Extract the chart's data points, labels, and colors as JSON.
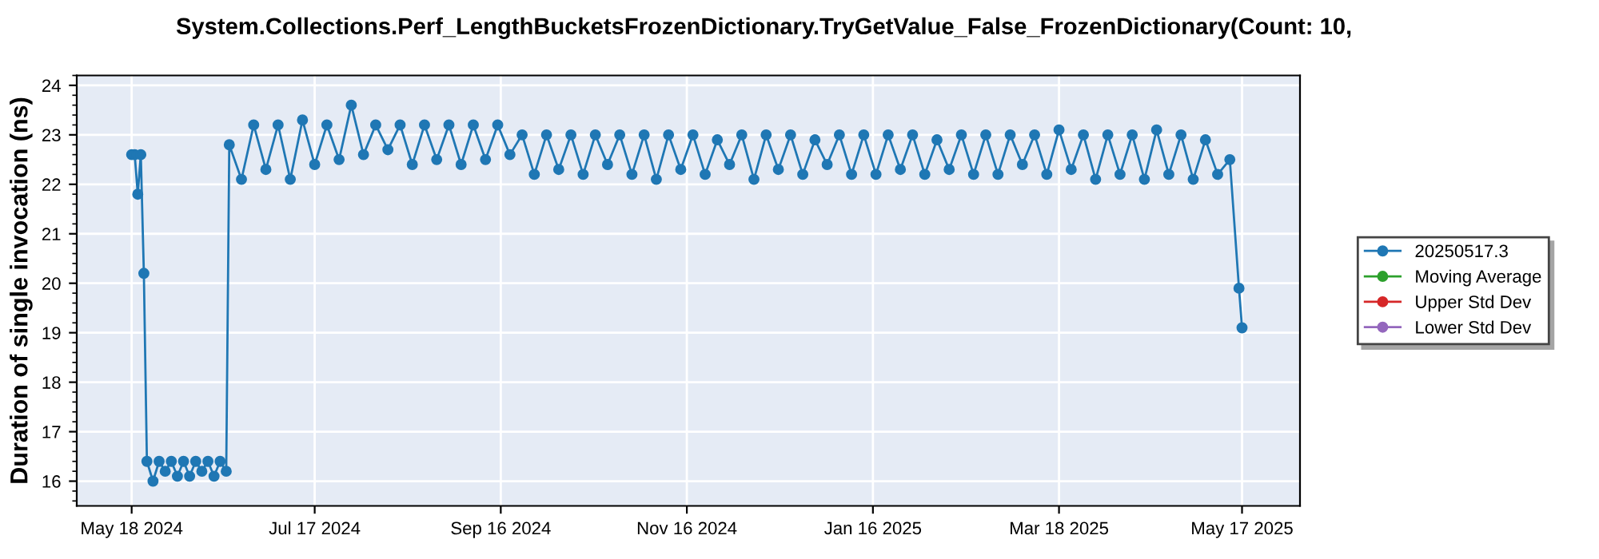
{
  "chart_data": {
    "type": "line",
    "title": "System.Collections.Perf_LengthBucketsFrozenDictionary.TryGetValue_False_FrozenDictionary(Count: 10,",
    "ylabel": "Duration of single invocation (ns)",
    "xlim": [
      "2024-04-30",
      "2025-06-05"
    ],
    "ylim": [
      15.5,
      24.2
    ],
    "xticks": [
      {
        "value": "2024-05-18",
        "label": "May 18 2024"
      },
      {
        "value": "2024-07-17",
        "label": "Jul 17 2024"
      },
      {
        "value": "2024-09-16",
        "label": "Sep 16 2024"
      },
      {
        "value": "2024-11-16",
        "label": "Nov 16 2024"
      },
      {
        "value": "2025-01-16",
        "label": "Jan 16 2025"
      },
      {
        "value": "2025-03-18",
        "label": "Mar 18 2025"
      },
      {
        "value": "2025-05-17",
        "label": "May 17 2025"
      }
    ],
    "yticks": [
      16,
      17,
      18,
      19,
      20,
      21,
      22,
      23,
      24
    ],
    "grid": true,
    "legend": "right",
    "marker": "circle",
    "line_style": "solid",
    "series": [
      {
        "name": "20250517.3",
        "color": "#1f77b4",
        "x": [
          "2024-05-18",
          "2024-05-19",
          "2024-05-20",
          "2024-05-21",
          "2024-05-22",
          "2024-05-23",
          "2024-05-25",
          "2024-05-27",
          "2024-05-29",
          "2024-05-31",
          "2024-06-02",
          "2024-06-04",
          "2024-06-06",
          "2024-06-08",
          "2024-06-10",
          "2024-06-12",
          "2024-06-14",
          "2024-06-16",
          "2024-06-18",
          "2024-06-19",
          "2024-06-23",
          "2024-06-27",
          "2024-07-01",
          "2024-07-05",
          "2024-07-09",
          "2024-07-13",
          "2024-07-17",
          "2024-07-21",
          "2024-07-25",
          "2024-07-29",
          "2024-08-02",
          "2024-08-06",
          "2024-08-10",
          "2024-08-14",
          "2024-08-18",
          "2024-08-22",
          "2024-08-26",
          "2024-08-30",
          "2024-09-03",
          "2024-09-07",
          "2024-09-11",
          "2024-09-15",
          "2024-09-19",
          "2024-09-23",
          "2024-09-27",
          "2024-10-01",
          "2024-10-05",
          "2024-10-09",
          "2024-10-13",
          "2024-10-17",
          "2024-10-21",
          "2024-10-25",
          "2024-10-29",
          "2024-11-02",
          "2024-11-06",
          "2024-11-10",
          "2024-11-14",
          "2024-11-18",
          "2024-11-22",
          "2024-11-26",
          "2024-11-30",
          "2024-12-04",
          "2024-12-08",
          "2024-12-12",
          "2024-12-16",
          "2024-12-20",
          "2024-12-24",
          "2024-12-28",
          "2025-01-01",
          "2025-01-05",
          "2025-01-09",
          "2025-01-13",
          "2025-01-17",
          "2025-01-21",
          "2025-01-25",
          "2025-01-29",
          "2025-02-02",
          "2025-02-06",
          "2025-02-10",
          "2025-02-14",
          "2025-02-18",
          "2025-02-22",
          "2025-02-26",
          "2025-03-02",
          "2025-03-06",
          "2025-03-10",
          "2025-03-14",
          "2025-03-18",
          "2025-03-22",
          "2025-03-26",
          "2025-03-30",
          "2025-04-03",
          "2025-04-07",
          "2025-04-11",
          "2025-04-15",
          "2025-04-19",
          "2025-04-23",
          "2025-04-27",
          "2025-05-01",
          "2025-05-05",
          "2025-05-09",
          "2025-05-13",
          "2025-05-16",
          "2025-05-17"
        ],
        "values": [
          22.6,
          22.6,
          21.8,
          22.6,
          20.2,
          16.4,
          16.0,
          16.4,
          16.2,
          16.4,
          16.1,
          16.4,
          16.1,
          16.4,
          16.2,
          16.4,
          16.1,
          16.4,
          16.2,
          22.8,
          22.1,
          23.2,
          22.3,
          23.2,
          22.1,
          23.3,
          22.4,
          23.2,
          22.5,
          23.6,
          22.6,
          23.2,
          22.7,
          23.2,
          22.4,
          23.2,
          22.5,
          23.2,
          22.4,
          23.2,
          22.5,
          23.2,
          22.6,
          23.0,
          22.2,
          23.0,
          22.3,
          23.0,
          22.2,
          23.0,
          22.4,
          23.0,
          22.2,
          23.0,
          22.1,
          23.0,
          22.3,
          23.0,
          22.2,
          22.9,
          22.4,
          23.0,
          22.1,
          23.0,
          22.3,
          23.0,
          22.2,
          22.9,
          22.4,
          23.0,
          22.2,
          23.0,
          22.2,
          23.0,
          22.3,
          23.0,
          22.2,
          22.9,
          22.3,
          23.0,
          22.2,
          23.0,
          22.2,
          23.0,
          22.4,
          23.0,
          22.2,
          23.1,
          22.3,
          23.0,
          22.1,
          23.0,
          22.2,
          23.0,
          22.1,
          23.1,
          22.2,
          23.0,
          22.1,
          22.9,
          22.2,
          22.5,
          19.9,
          19.1
        ]
      },
      {
        "name": "Moving Average",
        "color": "#2ca02c"
      },
      {
        "name": "Upper Std Dev",
        "color": "#d62728"
      },
      {
        "name": "Lower Std Dev",
        "color": "#9467bd"
      }
    ]
  }
}
